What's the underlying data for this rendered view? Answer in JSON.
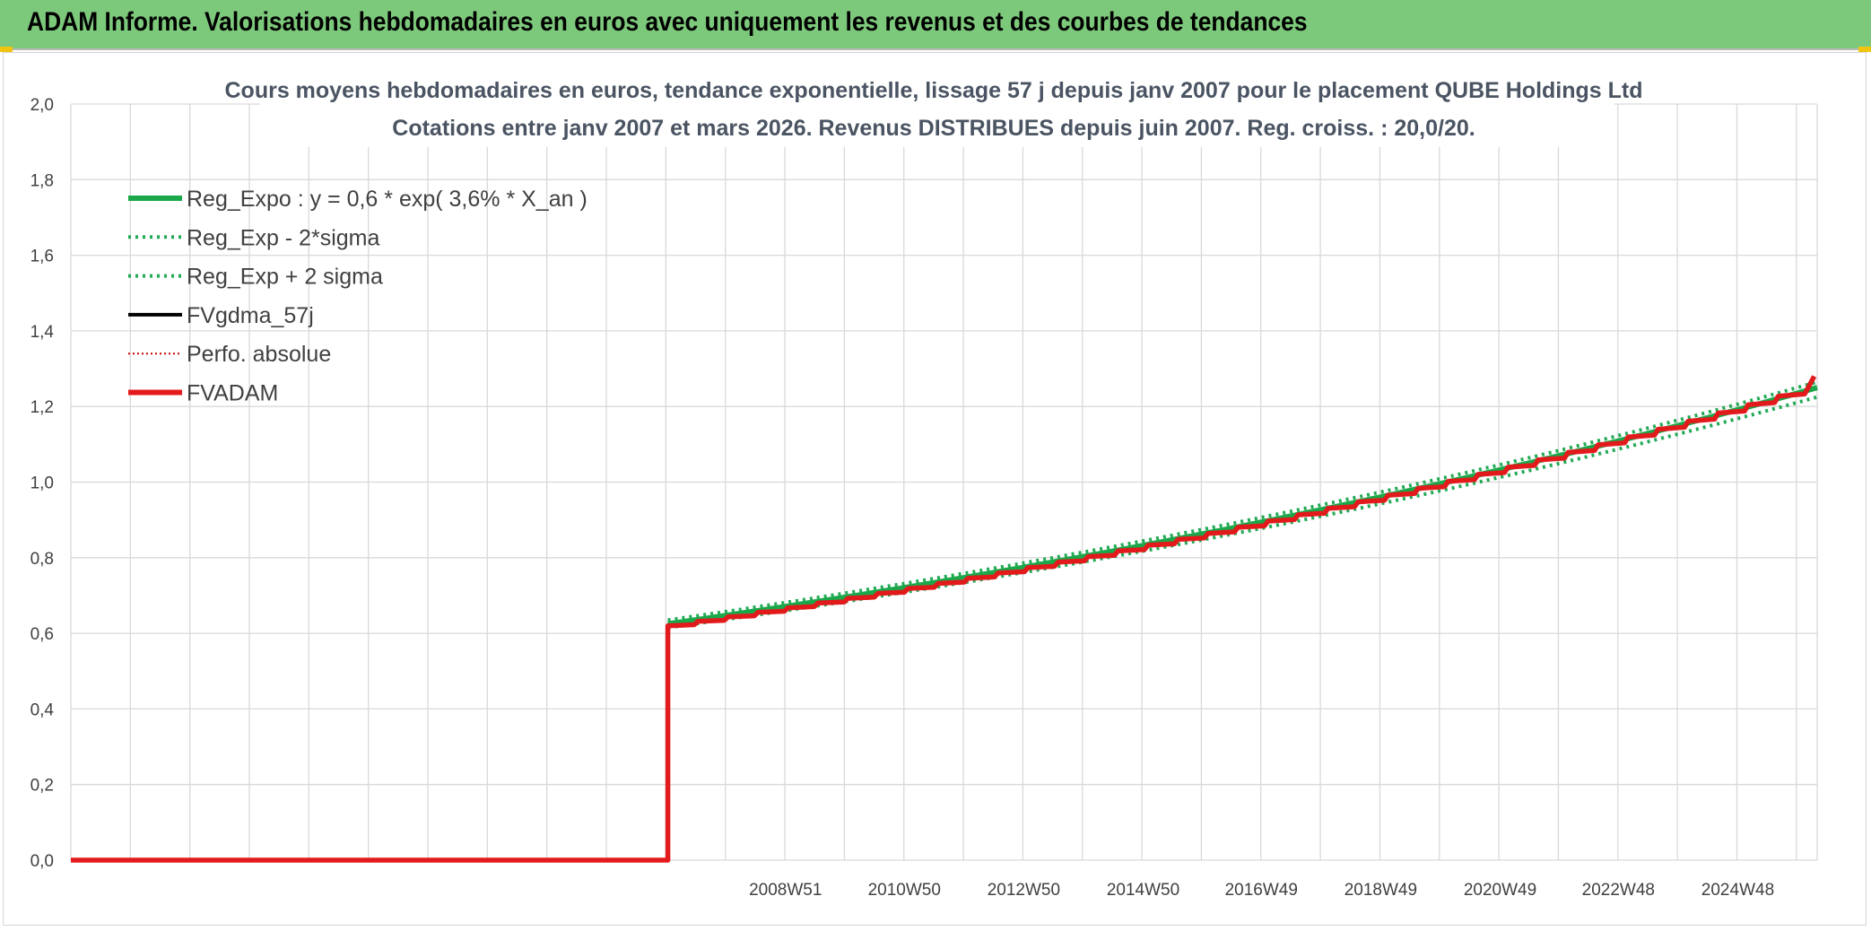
{
  "banner": {
    "title": "ADAM Informe. Valorisations hebdomadaires en euros avec uniquement les revenus et des courbes de tendances"
  },
  "colors": {
    "banner": "#7dc97b",
    "reg_expo": "#1aa84a",
    "sigma": "#22aa55",
    "fvgdma": "#000000",
    "perfo": "#cc0000",
    "fvadam": "#e31a1c",
    "grid": "#d9d9d9"
  },
  "chart_data": {
    "type": "line",
    "title_line1": "Cours moyens hebdomadaires en euros, tendance exponentielle, lissage 57 j depuis janv 2007 pour le placement QUBE Holdings Ltd",
    "title_line2": "Cotations entre janv 2007 et mars 2026. Revenus DISTRIBUES depuis juin 2007. Reg. croiss. : 20,0/20.",
    "ylim": [
      0,
      2
    ],
    "yticks": [
      "0,0",
      "0,2",
      "0,4",
      "0,6",
      "0,8",
      "1,0",
      "1,2",
      "1,4",
      "1,6",
      "1,8",
      "2,0"
    ],
    "xrange_years": [
      1997.0,
      2026.25
    ],
    "xticks": [
      {
        "label": "2008W51",
        "t": 2008.97
      },
      {
        "label": "2010W50",
        "t": 2010.96
      },
      {
        "label": "2012W50",
        "t": 2012.96
      },
      {
        "label": "2014W50",
        "t": 2014.96
      },
      {
        "label": "2016W49",
        "t": 2016.94
      },
      {
        "label": "2018W49",
        "t": 2018.94
      },
      {
        "label": "2020W49",
        "t": 2020.94
      },
      {
        "label": "2022W48",
        "t": 2022.92
      },
      {
        "label": "2024W48",
        "t": 2024.92
      }
    ],
    "grid": true,
    "legend_position": "top-left",
    "legend": [
      {
        "name": "Reg_Expo : y = 0,6 * exp( 3,6% *  X_an )",
        "key": "reg_expo",
        "style": "solid-thick"
      },
      {
        "name": "Reg_Exp - 2*sigma",
        "key": "sigma",
        "style": "dotted"
      },
      {
        "name": "Reg_Exp + 2 sigma",
        "key": "sigma",
        "style": "dotted"
      },
      {
        "name": "FVgdma_57j",
        "key": "fvgdma",
        "style": "solid"
      },
      {
        "name": "Perfo. absolue",
        "key": "perfo",
        "style": "dotted-thin"
      },
      {
        "name": "FVADAM",
        "key": "fvadam",
        "style": "solid-thick"
      }
    ],
    "series": [
      {
        "name": "Reg_Expo : y = 0,6 * exp( 3,6% *  X_an )",
        "start": 2007.0,
        "end": 2026.25,
        "y_start": 0.625,
        "y_end": 1.25
      },
      {
        "name": "Reg_Exp - 2*sigma",
        "start": 2007.0,
        "end": 2026.25,
        "y_start": 0.615,
        "y_end": 1.225
      },
      {
        "name": "Reg_Exp + 2 sigma",
        "start": 2007.0,
        "end": 2026.25,
        "y_start": 0.635,
        "y_end": 1.265
      },
      {
        "name": "FVADAM",
        "zero_until": 2007.0,
        "start": 2007.0,
        "end": 2026.1,
        "y_start": 0.62,
        "y_end": 1.25,
        "final_value": 1.28
      }
    ]
  }
}
